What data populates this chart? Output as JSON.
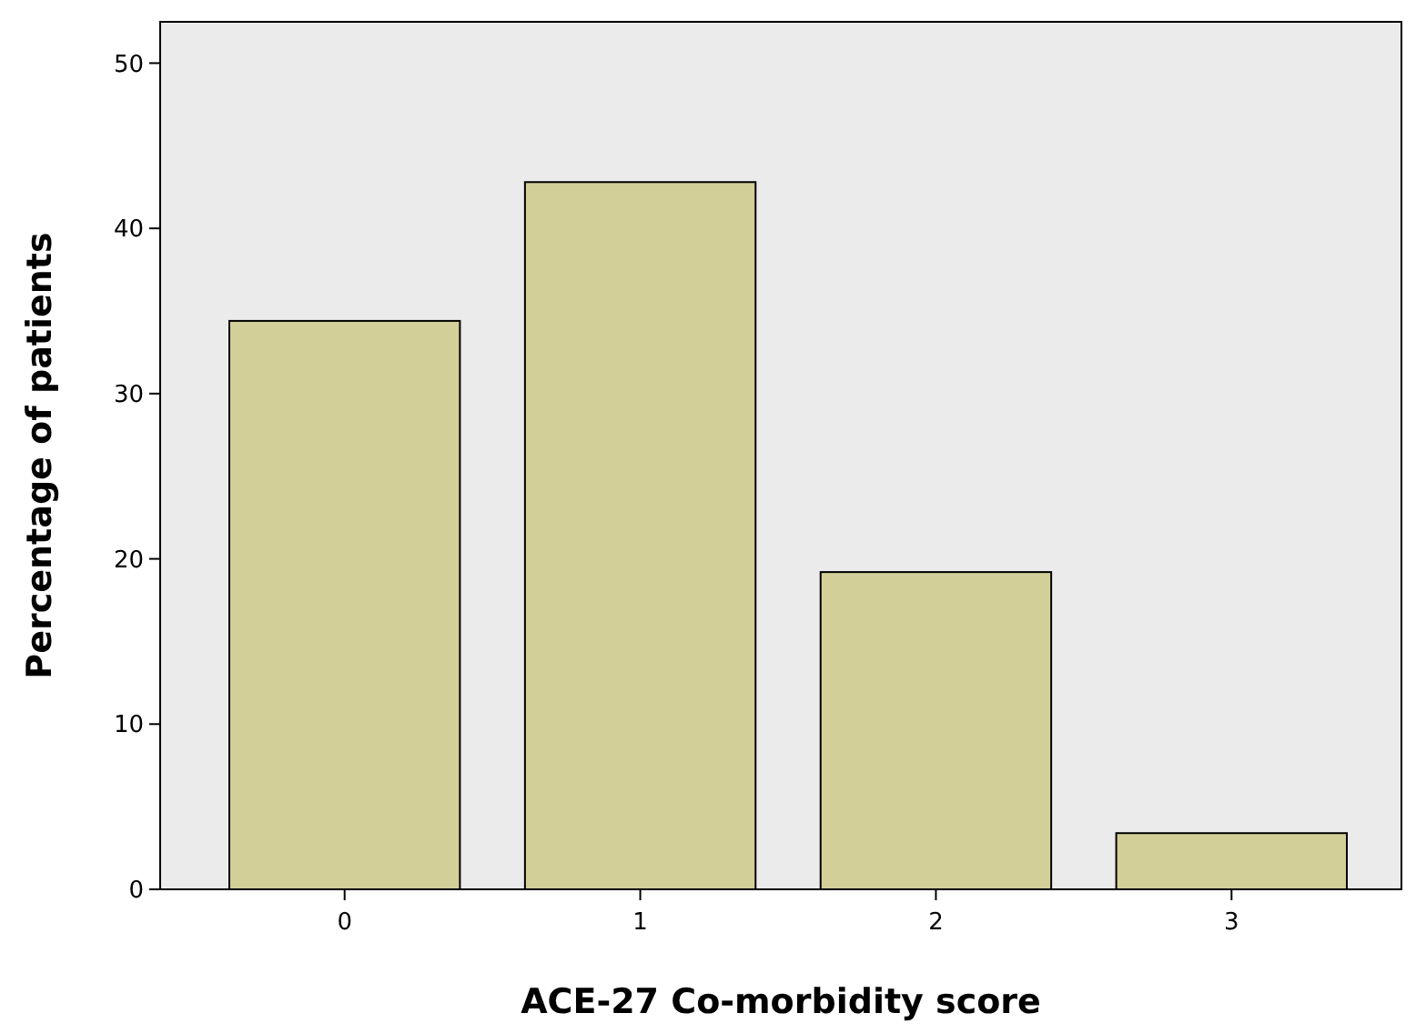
{
  "chart_data": {
    "type": "bar",
    "xlabel": "ACE-27 Co-morbidity score",
    "ylabel": "Percentage of patients",
    "categories": [
      "0",
      "1",
      "2",
      "3"
    ],
    "values": [
      34.4,
      42.8,
      19.2,
      3.4
    ],
    "color": "#d3cf98",
    "ylim": [
      0,
      52.5
    ],
    "yticks": [
      0,
      10,
      20,
      30,
      40,
      50
    ],
    "grid": false
  }
}
